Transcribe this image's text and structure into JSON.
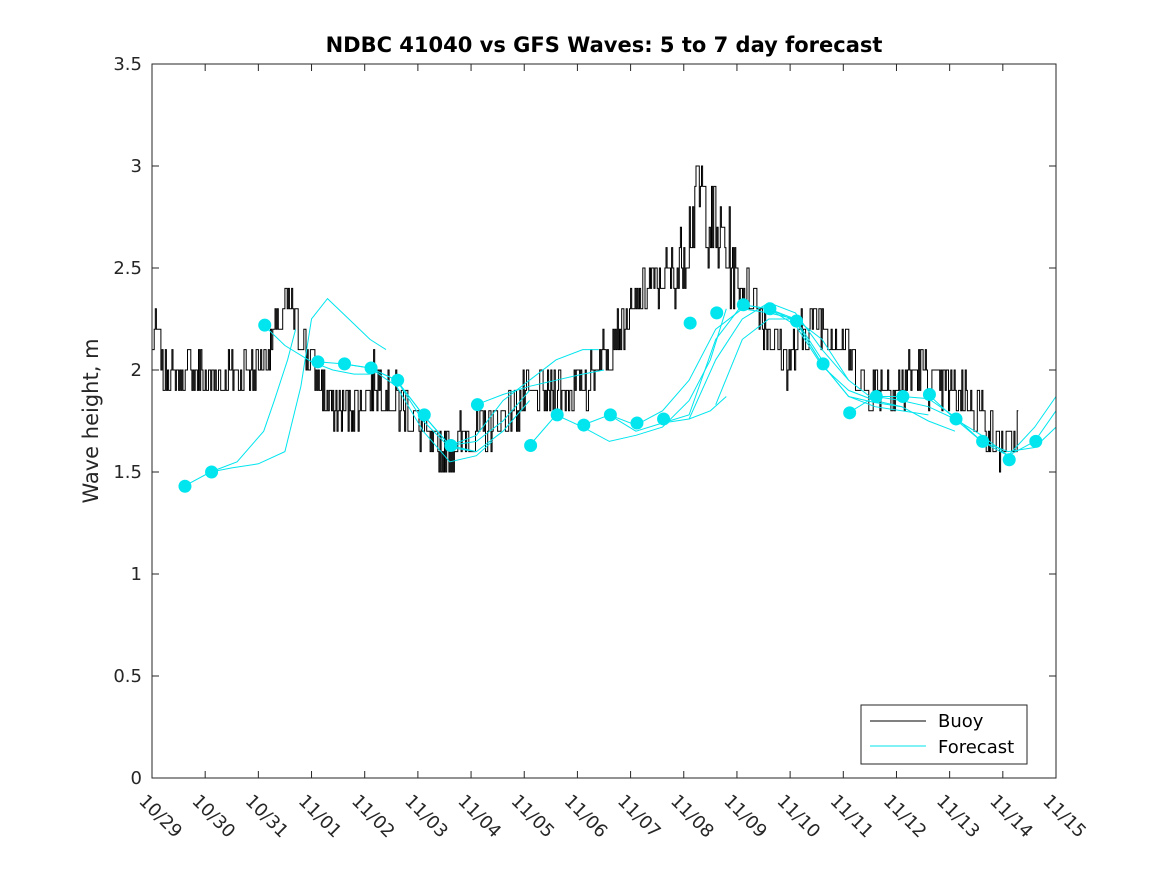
{
  "chart_data": {
    "type": "line",
    "title": "NDBC 41040 vs GFS Waves: 5 to 7 day forecast",
    "xlabel": "",
    "ylabel": "Wave height, m",
    "ylim": [
      0,
      3.5
    ],
    "yticks": [
      0,
      0.5,
      1,
      1.5,
      2,
      2.5,
      3,
      3.5
    ],
    "ytick_labels": [
      "0",
      "0.5",
      "1",
      "1.5",
      "2",
      "2.5",
      "3",
      "3.5"
    ],
    "xlim": [
      0,
      17
    ],
    "xtick_labels": [
      "10/29",
      "10/30",
      "10/31",
      "11/01",
      "11/02",
      "11/03",
      "11/04",
      "11/05",
      "11/06",
      "11/07",
      "11/08",
      "11/09",
      "11/10",
      "11/11",
      "11/12",
      "11/13",
      "11/14",
      "11/15"
    ],
    "legend": {
      "position": "bottom-right",
      "entries": [
        "Buoy",
        "Forecast"
      ]
    },
    "colors": {
      "buoy": "#000000",
      "forecast": "#00e5ee",
      "markers": "#00e5ee",
      "axes": "#262626"
    },
    "buoy_key_points": [
      [
        0,
        2.1
      ],
      [
        0.1,
        2.2
      ],
      [
        0.2,
        2.0
      ],
      [
        0.5,
        1.95
      ],
      [
        0.8,
        2.0
      ],
      [
        1.0,
        1.95
      ],
      [
        1.3,
        1.95
      ],
      [
        1.6,
        2.0
      ],
      [
        1.9,
        2.0
      ],
      [
        2.2,
        2.1
      ],
      [
        2.5,
        2.3
      ],
      [
        2.7,
        2.25
      ],
      [
        2.9,
        2.1
      ],
      [
        3.1,
        1.95
      ],
      [
        3.3,
        1.85
      ],
      [
        3.6,
        1.8
      ],
      [
        3.9,
        1.85
      ],
      [
        4.2,
        1.95
      ],
      [
        4.5,
        1.85
      ],
      [
        4.8,
        1.8
      ],
      [
        5.0,
        1.75
      ],
      [
        5.2,
        1.65
      ],
      [
        5.5,
        1.62
      ],
      [
        5.8,
        1.65
      ],
      [
        6.1,
        1.7
      ],
      [
        6.4,
        1.75
      ],
      [
        6.7,
        1.78
      ],
      [
        7.0,
        1.85
      ],
      [
        7.3,
        1.88
      ],
      [
        7.6,
        1.92
      ],
      [
        7.9,
        1.9
      ],
      [
        8.2,
        1.95
      ],
      [
        8.5,
        2.1
      ],
      [
        8.8,
        2.2
      ],
      [
        9.0,
        2.25
      ],
      [
        9.3,
        2.4
      ],
      [
        9.6,
        2.45
      ],
      [
        9.9,
        2.5
      ],
      [
        10.1,
        2.7
      ],
      [
        10.3,
        2.9
      ],
      [
        10.5,
        2.7
      ],
      [
        10.7,
        2.65
      ],
      [
        10.9,
        2.5
      ],
      [
        11.1,
        2.35
      ],
      [
        11.3,
        2.4
      ],
      [
        11.5,
        2.2
      ],
      [
        11.7,
        2.15
      ],
      [
        11.9,
        2.05
      ],
      [
        12.1,
        2.1
      ],
      [
        12.3,
        2.2
      ],
      [
        12.5,
        2.25
      ],
      [
        12.7,
        2.2
      ],
      [
        12.9,
        2.15
      ],
      [
        13.1,
        2.1
      ],
      [
        13.3,
        1.95
      ],
      [
        13.5,
        1.9
      ],
      [
        13.7,
        1.95
      ],
      [
        13.9,
        1.9
      ],
      [
        14.1,
        1.92
      ],
      [
        14.4,
        2.0
      ],
      [
        14.7,
        1.95
      ],
      [
        15.0,
        1.9
      ],
      [
        15.3,
        1.88
      ],
      [
        15.6,
        1.8
      ],
      [
        15.8,
        1.65
      ],
      [
        16.0,
        1.62
      ],
      [
        16.2,
        1.65
      ],
      [
        16.3,
        1.7
      ]
    ],
    "forecast_runs": [
      [
        [
          0.6,
          1.43
        ],
        [
          1.1,
          1.5
        ],
        [
          1.6,
          1.55
        ],
        [
          2.1,
          1.7
        ],
        [
          2.3,
          1.85
        ],
        [
          2.55,
          2.05
        ],
        [
          2.7,
          2.2
        ]
      ],
      [
        [
          1.1,
          1.5
        ],
        [
          1.5,
          1.52
        ],
        [
          2.0,
          1.54
        ],
        [
          2.5,
          1.6
        ],
        [
          2.8,
          1.92
        ],
        [
          3.0,
          2.25
        ],
        [
          3.3,
          2.35
        ],
        [
          3.7,
          2.25
        ],
        [
          4.1,
          2.15
        ],
        [
          4.4,
          2.1
        ]
      ],
      [
        [
          2.1,
          2.22
        ],
        [
          2.5,
          2.12
        ],
        [
          3.0,
          2.04
        ],
        [
          3.4,
          2.0
        ],
        [
          3.8,
          1.98
        ],
        [
          4.1,
          1.98
        ]
      ],
      [
        [
          3.1,
          2.04
        ],
        [
          3.6,
          2.03
        ],
        [
          4.1,
          2.01
        ],
        [
          4.6,
          1.95
        ],
        [
          5.1,
          1.78
        ],
        [
          5.6,
          1.63
        ],
        [
          6.1,
          1.6
        ]
      ],
      [
        [
          3.6,
          2.03
        ],
        [
          4.1,
          2.01
        ],
        [
          4.6,
          1.92
        ],
        [
          5.1,
          1.7
        ],
        [
          5.6,
          1.55
        ],
        [
          6.1,
          1.58
        ],
        [
          6.4,
          1.65
        ]
      ],
      [
        [
          4.1,
          2.01
        ],
        [
          4.6,
          1.95
        ],
        [
          5.1,
          1.75
        ],
        [
          5.6,
          1.62
        ],
        [
          6.1,
          1.6
        ],
        [
          6.6,
          1.7
        ],
        [
          7.1,
          1.85
        ]
      ],
      [
        [
          4.6,
          1.95
        ],
        [
          5.1,
          1.78
        ],
        [
          5.6,
          1.63
        ],
        [
          6.1,
          1.65
        ],
        [
          6.6,
          1.75
        ],
        [
          7.1,
          1.9
        ]
      ],
      [
        [
          5.1,
          1.78
        ],
        [
          5.6,
          1.63
        ],
        [
          6.1,
          1.68
        ],
        [
          6.6,
          1.85
        ],
        [
          7.1,
          1.95
        ],
        [
          7.6,
          2.05
        ],
        [
          8.1,
          2.1
        ],
        [
          8.4,
          2.1
        ]
      ],
      [
        [
          6.1,
          1.83
        ],
        [
          6.6,
          1.88
        ],
        [
          7.1,
          1.92
        ],
        [
          7.6,
          1.95
        ],
        [
          8.1,
          1.98
        ],
        [
          8.5,
          2.0
        ]
      ],
      [
        [
          7.1,
          1.63
        ],
        [
          7.6,
          1.78
        ],
        [
          8.1,
          1.72
        ],
        [
          8.6,
          1.65
        ],
        [
          9.1,
          1.68
        ],
        [
          9.6,
          1.72
        ],
        [
          10.1,
          1.85
        ],
        [
          10.5,
          2.05
        ],
        [
          10.8,
          2.3
        ]
      ],
      [
        [
          8.1,
          1.73
        ],
        [
          8.6,
          1.78
        ],
        [
          9.1,
          1.7
        ],
        [
          9.6,
          1.74
        ],
        [
          10.1,
          1.76
        ],
        [
          10.5,
          1.8
        ],
        [
          10.8,
          1.87
        ]
      ],
      [
        [
          8.6,
          1.78
        ],
        [
          9.1,
          1.73
        ],
        [
          9.6,
          1.8
        ],
        [
          10.1,
          1.95
        ],
        [
          10.6,
          2.2
        ],
        [
          11.1,
          2.3
        ],
        [
          11.6,
          2.28
        ],
        [
          12.1,
          2.25
        ]
      ],
      [
        [
          9.6,
          1.74
        ],
        [
          10.1,
          1.78
        ],
        [
          10.6,
          2.15
        ],
        [
          11.1,
          2.32
        ],
        [
          11.6,
          2.3
        ],
        [
          12.1,
          2.25
        ],
        [
          12.6,
          2.05
        ]
      ],
      [
        [
          10.1,
          1.76
        ],
        [
          10.6,
          2.05
        ],
        [
          11.1,
          2.25
        ],
        [
          11.6,
          2.33
        ],
        [
          12.1,
          2.28
        ],
        [
          12.6,
          2.1
        ],
        [
          13.1,
          1.95
        ]
      ],
      [
        [
          10.6,
          1.83
        ],
        [
          11.1,
          2.15
        ],
        [
          11.6,
          2.25
        ],
        [
          12.1,
          2.25
        ],
        [
          12.6,
          2.15
        ],
        [
          13.1,
          1.95
        ],
        [
          13.6,
          1.85
        ]
      ],
      [
        [
          11.1,
          2.32
        ],
        [
          11.6,
          2.3
        ],
        [
          12.1,
          2.22
        ],
        [
          12.6,
          2.02
        ],
        [
          13.1,
          1.9
        ],
        [
          13.6,
          1.85
        ],
        [
          14.1,
          1.82
        ]
      ],
      [
        [
          11.6,
          2.3
        ],
        [
          12.1,
          2.24
        ],
        [
          12.6,
          2.03
        ],
        [
          13.1,
          1.87
        ],
        [
          13.6,
          1.82
        ],
        [
          14.1,
          1.8
        ],
        [
          14.6,
          1.78
        ]
      ],
      [
        [
          12.1,
          2.24
        ],
        [
          12.6,
          2.03
        ],
        [
          13.1,
          1.87
        ],
        [
          13.6,
          1.84
        ],
        [
          14.1,
          1.82
        ],
        [
          14.6,
          1.75
        ],
        [
          15.1,
          1.7
        ]
      ],
      [
        [
          13.1,
          1.79
        ],
        [
          13.6,
          1.87
        ],
        [
          14.1,
          1.85
        ],
        [
          14.6,
          1.82
        ],
        [
          15.1,
          1.76
        ],
        [
          15.6,
          1.68
        ],
        [
          16.1,
          1.58
        ],
        [
          16.6,
          1.65
        ],
        [
          17.0,
          1.8
        ]
      ],
      [
        [
          13.6,
          1.87
        ],
        [
          14.1,
          1.87
        ],
        [
          14.6,
          1.86
        ],
        [
          15.1,
          1.77
        ],
        [
          15.6,
          1.65
        ],
        [
          16.1,
          1.58
        ],
        [
          16.6,
          1.72
        ],
        [
          17.0,
          1.87
        ]
      ],
      [
        [
          14.6,
          1.88
        ],
        [
          15.1,
          1.76
        ],
        [
          15.6,
          1.65
        ],
        [
          16.1,
          1.6
        ],
        [
          16.6,
          1.62
        ],
        [
          17.0,
          1.72
        ]
      ]
    ],
    "forecast_markers": [
      [
        0.62,
        1.43
      ],
      [
        1.12,
        1.5
      ],
      [
        2.12,
        2.22
      ],
      [
        3.12,
        2.04
      ],
      [
        3.62,
        2.03
      ],
      [
        4.12,
        2.01
      ],
      [
        4.62,
        1.95
      ],
      [
        5.12,
        1.78
      ],
      [
        5.62,
        1.63
      ],
      [
        6.12,
        1.83
      ],
      [
        7.12,
        1.63
      ],
      [
        7.62,
        1.78
      ],
      [
        8.12,
        1.73
      ],
      [
        8.62,
        1.78
      ],
      [
        9.12,
        1.74
      ],
      [
        9.62,
        1.76
      ],
      [
        10.12,
        2.23
      ],
      [
        10.62,
        2.28
      ],
      [
        11.12,
        2.32
      ],
      [
        11.62,
        2.3
      ],
      [
        12.12,
        2.24
      ],
      [
        12.62,
        2.03
      ],
      [
        13.12,
        1.79
      ],
      [
        13.62,
        1.87
      ],
      [
        14.12,
        1.87
      ],
      [
        14.62,
        1.88
      ],
      [
        15.12,
        1.76
      ],
      [
        15.62,
        1.65
      ],
      [
        16.12,
        1.56
      ],
      [
        16.62,
        1.65
      ]
    ]
  }
}
